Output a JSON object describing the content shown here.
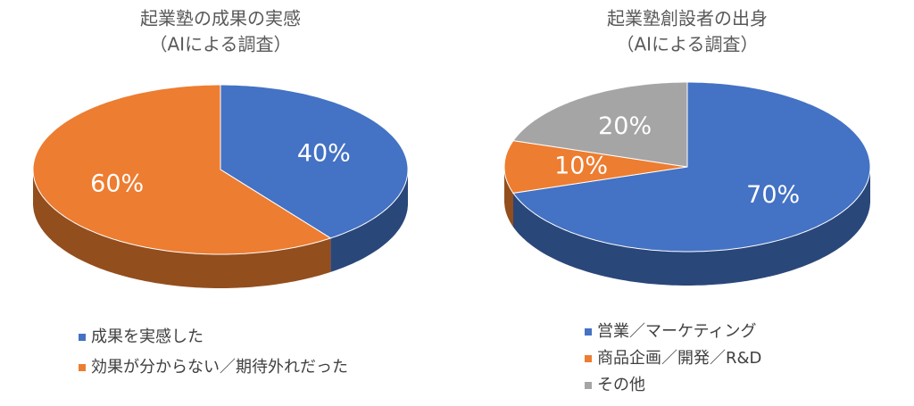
{
  "chart_data": [
    {
      "type": "pie",
      "title": "起業塾の成果の実感",
      "subtitle": "（AIによる調査）",
      "categories": [
        "成果を実感した",
        "効果が分からない／期待外れだった"
      ],
      "values": [
        40,
        60
      ],
      "value_labels": [
        "40%",
        "60%"
      ],
      "colors": [
        "#4472c4",
        "#ed7d31"
      ]
    },
    {
      "type": "pie",
      "title": "起業塾創設者の出身",
      "subtitle": "（AIによる調査）",
      "categories": [
        "営業／マーケティング",
        "商品企画／開発／R&D",
        "その他"
      ],
      "values": [
        70,
        10,
        20
      ],
      "value_labels": [
        "70%",
        "10%",
        "20%"
      ],
      "colors": [
        "#4472c4",
        "#ed7d31",
        "#a5a5a5"
      ]
    }
  ]
}
